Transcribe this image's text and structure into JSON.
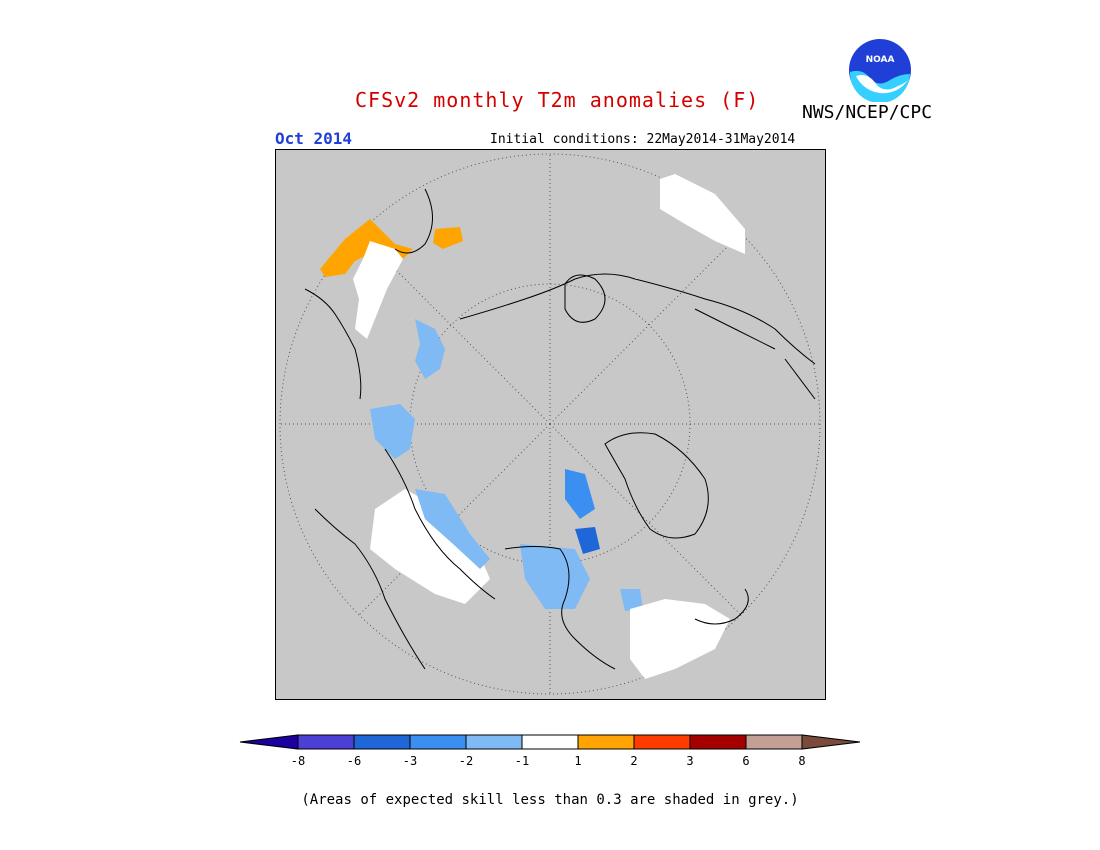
{
  "header": {
    "title": "CFSv2 monthly T2m anomalies (F)",
    "month": "Oct 2014",
    "initial_conditions": "Initial conditions: 22May2014-31May2014",
    "organization": "NWS/NCEP/CPC",
    "logo_text": "NOAA"
  },
  "colorbar": {
    "colors": [
      "#1c00a0",
      "#4b3fd6",
      "#1f66d8",
      "#3b8ff0",
      "#7fbaf5",
      "#ffffff",
      "#ffa400",
      "#ff3c00",
      "#a50000",
      "#c2a093",
      "#7a4a3a"
    ],
    "labels": [
      "-8",
      "-6",
      "-3",
      "-2",
      "-1",
      "1",
      "2",
      "3",
      "6",
      "8"
    ]
  },
  "footnote": "(Areas of expected skill less than 0.3 are shaded in grey.)",
  "map": {
    "background_color": "#c8c8c8",
    "regions": [
      {
        "name": "scandinavia-warm",
        "color": "#ffa400"
      },
      {
        "name": "east-asia-near-normal",
        "color": "#ffffff"
      },
      {
        "name": "north-america-near-normal",
        "color": "#ffffff"
      },
      {
        "name": "canada-cool",
        "color": "#7fbaf5"
      },
      {
        "name": "greenland-cool",
        "color": "#3b8ff0"
      },
      {
        "name": "atlantic-near-normal",
        "color": "#ffffff"
      }
    ]
  }
}
